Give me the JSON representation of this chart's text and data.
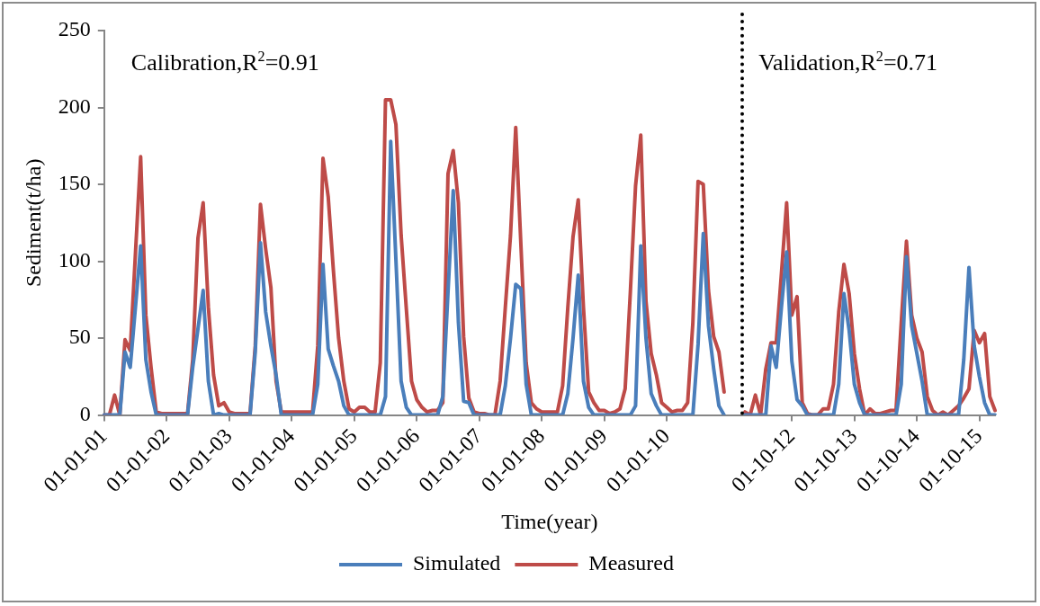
{
  "chart_data": {
    "type": "line",
    "xlabel": "Time(year)",
    "ylabel": "Sediment(t/ha)",
    "annotations": [
      "Calibration,R$^{2}$=0.91",
      "Validation,R$^{2}$=0.71"
    ],
    "categories": [
      "01-01-01",
      null,
      null,
      null,
      null,
      null,
      null,
      null,
      null,
      null,
      null,
      null,
      "01-01-02",
      null,
      null,
      null,
      null,
      null,
      null,
      null,
      null,
      null,
      null,
      null,
      "01-01-03",
      null,
      null,
      null,
      null,
      null,
      null,
      null,
      null,
      null,
      null,
      null,
      "01-01-04",
      null,
      null,
      null,
      null,
      null,
      null,
      null,
      null,
      null,
      null,
      null,
      "01-01-05",
      null,
      null,
      null,
      null,
      null,
      null,
      null,
      null,
      null,
      null,
      null,
      "01-01-06",
      null,
      null,
      null,
      null,
      null,
      null,
      null,
      null,
      null,
      null,
      null,
      "01-01-07",
      null,
      null,
      null,
      null,
      null,
      null,
      null,
      null,
      null,
      null,
      null,
      "01-01-08",
      null,
      null,
      null,
      null,
      null,
      null,
      null,
      null,
      null,
      null,
      null,
      "01-01-09",
      null,
      null,
      null,
      null,
      null,
      null,
      null,
      null,
      null,
      null,
      null,
      "01-01-10",
      null,
      null,
      null,
      null,
      null,
      null,
      null,
      null,
      null,
      null,
      null,
      null,
      null,
      null,
      null,
      null,
      null,
      null,
      null,
      null,
      null,
      null,
      null,
      "01-10-12",
      null,
      null,
      null,
      null,
      null,
      null,
      null,
      null,
      null,
      null,
      null,
      "01-10-13",
      null,
      null,
      null,
      null,
      null,
      null,
      null,
      null,
      null,
      null,
      null,
      "01-10-14",
      null,
      null,
      null,
      null,
      null,
      null,
      null,
      null,
      null,
      null,
      null,
      "01-10-15",
      null,
      null,
      null
    ],
    "ylim": [
      0,
      250
    ],
    "yticks": [
      0,
      50,
      100,
      150,
      200,
      250
    ],
    "grid": false,
    "legend": "bottom",
    "marker": "none",
    "line_style": "solid",
    "series": [
      {
        "name": "Simulated",
        "color": "#4a7ebb",
        "values": [
          0,
          0,
          0,
          0,
          41,
          31,
          70,
          110,
          36,
          15,
          0,
          0,
          0,
          0,
          0,
          0,
          0,
          31,
          56,
          81,
          22,
          0,
          1,
          0,
          0,
          0,
          0,
          0,
          0,
          41,
          112,
          67,
          45,
          26,
          0,
          0,
          0,
          0,
          0,
          0,
          0,
          20,
          98,
          43,
          32,
          22,
          6,
          0,
          0,
          0,
          0,
          0,
          0,
          0,
          12,
          178,
          101,
          22,
          5,
          0,
          0,
          0,
          0,
          0,
          0,
          12,
          80,
          146,
          60,
          9,
          8,
          0,
          0,
          0,
          0,
          0,
          0,
          19,
          50,
          85,
          82,
          20,
          0,
          0,
          0,
          0,
          0,
          0,
          0,
          14,
          50,
          91,
          22,
          5,
          0,
          0,
          0,
          0,
          0,
          0,
          0,
          0,
          6,
          110,
          50,
          14,
          6,
          0,
          0,
          0,
          0,
          0,
          0,
          0,
          46,
          118,
          58,
          30,
          6,
          0,
          null,
          null,
          null,
          0,
          0,
          0,
          0,
          0,
          45,
          31,
          70,
          106,
          35,
          10,
          6,
          0,
          0,
          0,
          0,
          0,
          0,
          20,
          79,
          55,
          20,
          8,
          0,
          0,
          0,
          0,
          0,
          0,
          0,
          20,
          103,
          58,
          40,
          22,
          0,
          0,
          0,
          0,
          0,
          0,
          0,
          36,
          96,
          45,
          25,
          8,
          0,
          0
        ]
      },
      {
        "name": "Measured",
        "color": "#be4b48",
        "values": [
          0,
          0,
          13,
          0,
          49,
          42,
          105,
          168,
          65,
          31,
          2,
          1,
          1,
          1,
          1,
          1,
          1,
          36,
          115,
          138,
          70,
          26,
          6,
          8,
          2,
          1,
          1,
          1,
          1,
          45,
          137,
          108,
          83,
          22,
          2,
          2,
          2,
          2,
          2,
          2,
          2,
          45,
          167,
          142,
          94,
          50,
          22,
          4,
          2,
          5,
          5,
          2,
          2,
          34,
          205,
          205,
          189,
          117,
          69,
          22,
          10,
          5,
          2,
          3,
          3,
          8,
          157,
          172,
          138,
          51,
          11,
          2,
          1,
          1,
          0,
          0,
          22,
          70,
          117,
          187,
          110,
          34,
          8,
          4,
          2,
          2,
          2,
          2,
          19,
          70,
          116,
          140,
          70,
          15,
          8,
          3,
          3,
          1,
          2,
          4,
          17,
          80,
          149,
          182,
          74,
          40,
          26,
          8,
          5,
          2,
          3,
          3,
          8,
          60,
          152,
          150,
          81,
          51,
          41,
          15,
          null,
          null,
          null,
          2,
          0,
          13,
          0,
          30,
          47,
          47,
          92,
          138,
          65,
          77,
          8,
          1,
          0,
          0,
          4,
          4,
          20,
          67,
          98,
          79,
          40,
          17,
          0,
          4,
          1,
          1,
          2,
          3,
          3,
          60,
          113,
          65,
          50,
          41,
          12,
          3,
          0,
          2,
          0,
          3,
          6,
          11,
          17,
          55,
          47,
          53,
          12,
          3
        ]
      }
    ]
  }
}
